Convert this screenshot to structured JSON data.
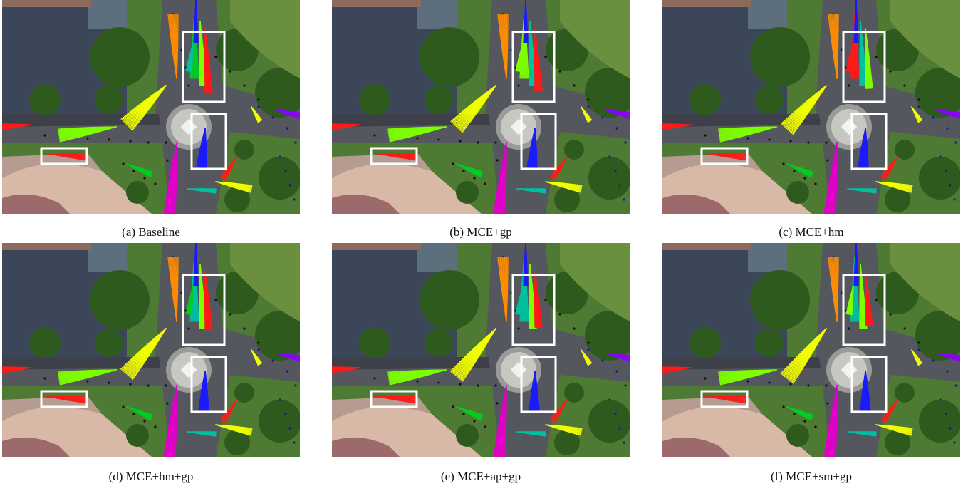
{
  "panels": [
    {
      "caption": "(a) Baseline",
      "variant": 0
    },
    {
      "caption": "(b) MCE+gp",
      "variant": 1
    },
    {
      "caption": "(c) MCE+hm",
      "variant": 2
    },
    {
      "caption": "(d) MCE+hm+gp",
      "variant": 3
    },
    {
      "caption": "(e) MCE+ap+gp",
      "variant": 4
    },
    {
      "caption": "(f) MCE+sm+gp",
      "variant": 5
    }
  ],
  "colors": {
    "grass": "#4e7a34",
    "road": "#55575f",
    "roof": "#3b4658",
    "plaza": "#d8b8a6",
    "tree": "#2e5a1e",
    "highlight_box": "#ffffff",
    "trajectory_palette": [
      "#ff8c00",
      "#f2ff00",
      "#7dff00",
      "#00cc22",
      "#00c0a0",
      "#0a55d6",
      "#1a1aff",
      "#8a00ff",
      "#e000c8",
      "#ff1a1a"
    ]
  }
}
